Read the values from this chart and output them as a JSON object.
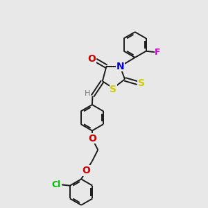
{
  "background_color": "#e8e8e8",
  "bond_color": "#1a1a1a",
  "bond_width": 1.4,
  "fig_width": 3.0,
  "fig_height": 3.0,
  "dpi": 100,
  "colors": {
    "O": "#cc0000",
    "N": "#0000cc",
    "S": "#cccc00",
    "F": "#cc00cc",
    "Cl": "#00bb00",
    "H": "#777777",
    "C": "#1a1a1a"
  }
}
